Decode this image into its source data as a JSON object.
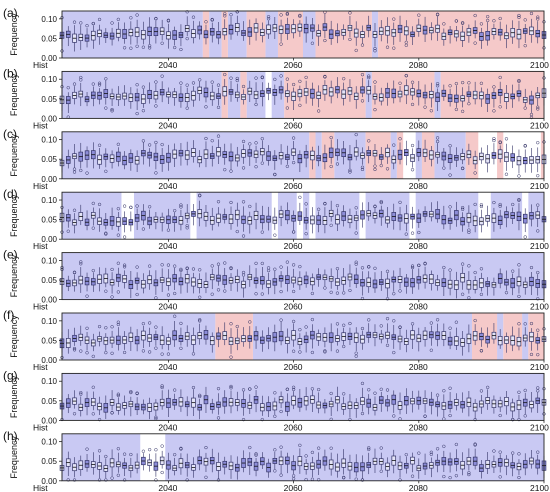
{
  "chart_data": {
    "type": "box",
    "ylabel": "Frequency",
    "yticks": [
      0.0,
      0.05,
      0.1
    ],
    "ylim": [
      0,
      0.12
    ],
    "x_start_label": "Hist",
    "xticks": [
      2040,
      2060,
      2080,
      2100
    ],
    "xlim": [
      2023,
      2100
    ],
    "colors": {
      "blue_band": "#c9c9f3",
      "red_band": "#f5c9c9",
      "box_edge": "#333366",
      "box_fill": "#8d8dd8",
      "box_fill_light": "#e4e4f7"
    },
    "panels": [
      {
        "letter": "(a)",
        "base": 0.055,
        "trend": 0.018,
        "blue": [
          [
            2023,
            2045.5
          ],
          [
            2046.5,
            2048.5
          ],
          [
            2049.5,
            2052.5
          ],
          [
            2055.5,
            2057.5
          ],
          [
            2061.5,
            2063.5
          ],
          [
            2072.5,
            2073.5
          ]
        ],
        "red": [
          [
            2045.5,
            2046.5
          ],
          [
            2048.5,
            2049.5
          ],
          [
            2052.5,
            2055.5
          ],
          [
            2057.5,
            2061.5
          ],
          [
            2063.5,
            2072.5
          ],
          [
            2073.5,
            2100
          ]
        ]
      },
      {
        "letter": "(b)",
        "base": 0.052,
        "trend": 0.015,
        "blue": [
          [
            2023,
            2048.5
          ],
          [
            2049.5,
            2051.5
          ],
          [
            2052.5,
            2055.5
          ],
          [
            2056.5,
            2058.5
          ],
          [
            2071.5,
            2072.5
          ],
          [
            2082.5,
            2083.5
          ]
        ],
        "red": [
          [
            2048.5,
            2049.5
          ],
          [
            2051.5,
            2052.5
          ],
          [
            2058.5,
            2071.5
          ],
          [
            2072.5,
            2082.5
          ],
          [
            2083.5,
            2100
          ]
        ]
      },
      {
        "letter": "(c)",
        "base": 0.05,
        "trend": 0.012,
        "blue": [
          [
            2023,
            2062.5
          ],
          [
            2063.5,
            2064.5
          ],
          [
            2066.5,
            2071.5
          ],
          [
            2075.5,
            2076.5
          ],
          [
            2079.5,
            2080.5
          ],
          [
            2082.5,
            2087.5
          ]
        ],
        "red": [
          [
            2062.5,
            2063.5
          ],
          [
            2064.5,
            2066.5
          ],
          [
            2071.5,
            2075.5
          ],
          [
            2076.5,
            2077.5
          ],
          [
            2080.5,
            2082.5
          ],
          [
            2087.5,
            2089.5
          ],
          [
            2092.5,
            2093.5
          ],
          [
            2099.5,
            2100
          ]
        ]
      },
      {
        "letter": "(d)",
        "base": 0.05,
        "trend": 0.008,
        "blue": [
          [
            2023,
            2032.5
          ],
          [
            2034.5,
            2043.5
          ],
          [
            2044.5,
            2056.5
          ],
          [
            2057.5,
            2060.5
          ],
          [
            2061.5,
            2062.5
          ],
          [
            2063.5,
            2070.5
          ],
          [
            2071.5,
            2078.5
          ],
          [
            2079.5,
            2089.5
          ],
          [
            2091.5,
            2096.5
          ],
          [
            2097.5,
            2100
          ]
        ],
        "red": []
      },
      {
        "letter": "(e)",
        "base": 0.045,
        "trend": 0.004,
        "blue": [
          [
            2023,
            2100
          ]
        ],
        "red": []
      },
      {
        "letter": "(f)",
        "base": 0.05,
        "trend": 0.008,
        "blue": [
          [
            2023,
            2047.5
          ],
          [
            2053.5,
            2088.5
          ],
          [
            2092.5,
            2093.5
          ],
          [
            2096.5,
            2097.5
          ]
        ],
        "red": [
          [
            2047.5,
            2053.5
          ],
          [
            2088.5,
            2092.5
          ],
          [
            2093.5,
            2096.5
          ],
          [
            2097.5,
            2100
          ]
        ]
      },
      {
        "letter": "(g)",
        "base": 0.04,
        "trend": 0.004,
        "blue": [
          [
            2023,
            2100
          ]
        ],
        "red": []
      },
      {
        "letter": "(h)",
        "base": 0.04,
        "trend": 0.003,
        "blue": [
          [
            2023,
            2035.5
          ],
          [
            2039.5,
            2100
          ]
        ],
        "red": []
      }
    ]
  }
}
